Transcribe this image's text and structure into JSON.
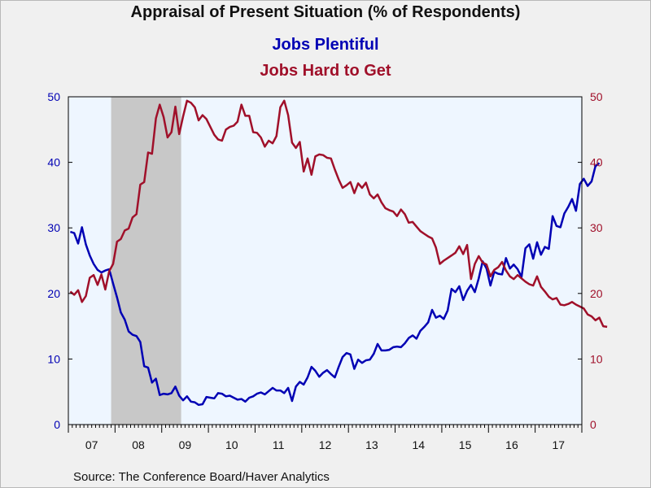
{
  "chart_data": {
    "type": "line",
    "title": "Appraisal of Present Situation (% of Respondents)",
    "xlabel": "",
    "ylabel": "",
    "x_tick_labels": [
      "07",
      "08",
      "09",
      "10",
      "11",
      "12",
      "13",
      "14",
      "15",
      "16",
      "17"
    ],
    "x_start_month": "2007-01",
    "ylim": [
      0,
      50
    ],
    "y_ticks_left": [
      0,
      10,
      20,
      30,
      40,
      50
    ],
    "y_ticks_right": [
      0,
      10,
      20,
      30,
      40,
      50
    ],
    "recession_band": {
      "start": "2007-12",
      "end": "2009-06"
    },
    "grid": false,
    "series": [
      {
        "name": "Jobs Plentiful",
        "color": "#0000b4",
        "axis": "left",
        "values": [
          29.4,
          29.2,
          27.6,
          30.1,
          27.5,
          25.8,
          24.5,
          23.6,
          23.2,
          23.5,
          23.7,
          21.5,
          19.4,
          17.1,
          16.0,
          14.2,
          13.7,
          13.5,
          12.6,
          8.9,
          8.7,
          6.4,
          7.0,
          4.5,
          4.7,
          4.6,
          4.8,
          5.8,
          4.4,
          3.7,
          4.3,
          3.5,
          3.4,
          3.0,
          3.1,
          4.2,
          4.1,
          4.0,
          4.8,
          4.7,
          4.3,
          4.4,
          4.1,
          3.8,
          3.9,
          3.5,
          4.1,
          4.3,
          4.7,
          4.9,
          4.6,
          5.1,
          5.6,
          5.2,
          5.2,
          4.8,
          5.6,
          3.6,
          5.8,
          6.5,
          6.1,
          7.2,
          8.8,
          8.2,
          7.3,
          7.9,
          8.3,
          7.7,
          7.2,
          8.8,
          10.3,
          10.9,
          10.7,
          8.5,
          9.9,
          9.4,
          9.8,
          9.9,
          10.8,
          12.3,
          11.3,
          11.3,
          11.4,
          11.8,
          11.9,
          11.8,
          12.4,
          13.2,
          13.6,
          13.1,
          14.3,
          14.9,
          15.6,
          17.5,
          16.3,
          16.6,
          16.1,
          17.4,
          20.7,
          20.2,
          21.1,
          19.0,
          20.4,
          21.3,
          20.2,
          22.3,
          24.9,
          23.8,
          21.2,
          23.3,
          23.0,
          22.9,
          25.4,
          23.8,
          24.4,
          23.7,
          22.5,
          26.9,
          27.5,
          25.3,
          27.8,
          25.9,
          27.1,
          26.8,
          31.8,
          30.3,
          30.1,
          32.2,
          33.2,
          34.4,
          32.6,
          36.7,
          37.5,
          36.4,
          37.1,
          39.4,
          39.9
        ]
      },
      {
        "name": "Jobs Hard to Get",
        "color": "#a0102a",
        "axis": "right",
        "values": [
          20.3,
          19.8,
          20.5,
          18.7,
          19.6,
          22.4,
          22.8,
          21.3,
          22.9,
          20.6,
          23.4,
          24.5,
          27.9,
          28.3,
          29.6,
          29.9,
          31.6,
          32.1,
          36.6,
          37.0,
          41.5,
          41.3,
          46.7,
          48.8,
          46.9,
          43.8,
          44.6,
          48.5,
          44.3,
          47.0,
          49.4,
          49.1,
          48.4,
          46.4,
          47.2,
          46.6,
          45.4,
          44.2,
          43.5,
          43.3,
          45.0,
          45.4,
          45.6,
          46.2,
          48.8,
          47.1,
          47.1,
          44.6,
          44.5,
          43.8,
          42.4,
          43.3,
          42.9,
          44.0,
          48.4,
          49.4,
          47.2,
          43.0,
          42.2,
          43.1,
          38.6,
          40.6,
          38.1,
          40.9,
          41.2,
          41.1,
          40.7,
          40.6,
          38.9,
          37.4,
          36.1,
          36.5,
          37.0,
          35.3,
          36.8,
          36.1,
          36.9,
          35.1,
          34.5,
          35.1,
          33.9,
          33.0,
          32.7,
          32.5,
          31.8,
          32.8,
          32.1,
          30.8,
          30.9,
          30.2,
          29.5,
          29.1,
          28.7,
          28.4,
          27.0,
          24.5,
          25.0,
          25.4,
          25.8,
          26.2,
          27.2,
          26.0,
          27.4,
          22.2,
          24.5,
          25.7,
          24.7,
          24.4,
          22.6,
          23.6,
          24.0,
          24.8,
          23.5,
          22.6,
          22.2,
          22.8,
          22.3,
          21.8,
          21.4,
          21.2,
          22.6,
          21.0,
          20.3,
          19.5,
          19.1,
          19.3,
          18.3,
          18.2,
          18.4,
          18.7,
          18.3,
          18.0,
          17.7,
          16.8,
          16.5,
          15.9,
          16.3,
          15.0,
          14.9
        ]
      }
    ]
  },
  "source_text": "Source:  The Conference Board/Haver Analytics"
}
